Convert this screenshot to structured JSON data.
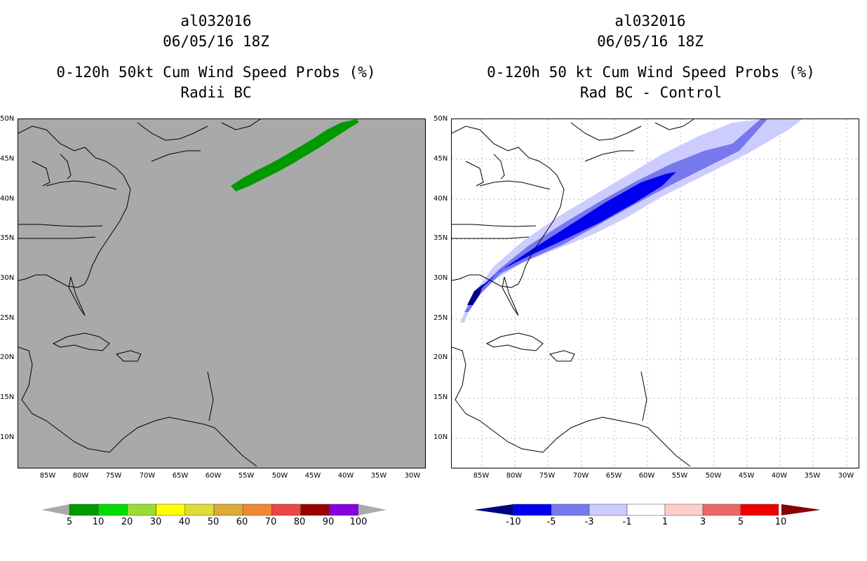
{
  "left": {
    "storm_id": "al032016",
    "datetime": "06/05/16 18Z",
    "product": "0-120h 50kt Cum Wind Speed Probs (%)",
    "subtitle": "Radii BC",
    "background": "#a9a9a9",
    "swath_color": "#009900",
    "colorbar": {
      "colors": [
        "#009900",
        "#00dd00",
        "#99dd33",
        "#ffff00",
        "#dddd33",
        "#ddaa33",
        "#ee8833",
        "#ee4444",
        "#990000",
        "#8800dd"
      ],
      "labels": [
        "5",
        "10",
        "20",
        "30",
        "40",
        "50",
        "60",
        "70",
        "80",
        "90",
        "100"
      ]
    }
  },
  "right": {
    "storm_id": "al032016",
    "datetime": "06/05/16 18Z",
    "product": "0-120h 50 kt Cum Wind Speed Probs (%)",
    "subtitle": "Rad BC - Control",
    "background": "#ffffff",
    "swath_colors": [
      "#ccccff",
      "#7777ee",
      "#0000ee",
      "#000088"
    ],
    "colorbar": {
      "colors": [
        "#000080",
        "#0000ee",
        "#7777ee",
        "#ccccff",
        "#ffffff",
        "#ffcccc",
        "#ee6666",
        "#ee0000",
        "#880000"
      ],
      "labels": [
        "-10",
        "-5",
        "-3",
        "-1",
        "1",
        "3",
        "5",
        "10"
      ]
    }
  },
  "axes": {
    "lat_labels": [
      "50N",
      "45N",
      "40N",
      "35N",
      "30N",
      "25N",
      "20N",
      "15N",
      "10N"
    ],
    "lon_labels": [
      "85W",
      "80W",
      "75W",
      "70W",
      "65W",
      "60W",
      "55W",
      "50W",
      "45W",
      "40W",
      "35W",
      "30W"
    ]
  }
}
